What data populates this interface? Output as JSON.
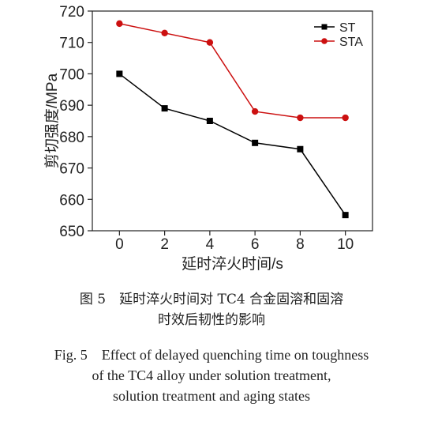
{
  "chart_data": {
    "type": "line",
    "x": [
      0,
      2,
      4,
      6,
      8,
      10
    ],
    "series": [
      {
        "name": "ST",
        "values": [
          700,
          689,
          685,
          678,
          676,
          655
        ],
        "color": "#000000",
        "marker": "square"
      },
      {
        "name": "STA",
        "values": [
          716,
          713,
          710,
          688,
          686,
          686
        ],
        "color": "#cc1010",
        "marker": "circle"
      }
    ],
    "xlabel": "延时淬火时间/s",
    "ylabel": "剪切强度/MPa",
    "xlim": [
      -1.2,
      11.2
    ],
    "ylim": [
      650,
      720
    ],
    "xticks": [
      0,
      2,
      4,
      6,
      8,
      10
    ],
    "yticks": [
      650,
      660,
      670,
      680,
      690,
      700,
      710,
      720
    ],
    "grid": false,
    "legend_position": "top-right"
  },
  "caption": {
    "cn_line1": "图 5　延时淬火时间对 TC4 合金固溶和固溶",
    "cn_line2": "时效后韧性的影响",
    "en_line1": "Fig. 5　Effect of delayed quenching time on toughness",
    "en_line2": "of the TC4 alloy under solution treatment,",
    "en_line3": "solution treatment and aging states"
  }
}
